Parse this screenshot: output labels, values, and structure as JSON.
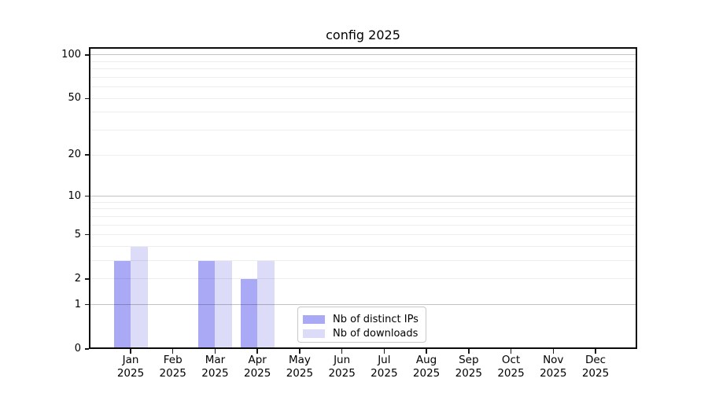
{
  "chart_data": {
    "type": "bar",
    "title": "config 2025",
    "categories": [
      "Jan",
      "Feb",
      "Mar",
      "Apr",
      "May",
      "Jun",
      "Jul",
      "Aug",
      "Sep",
      "Oct",
      "Nov",
      "Dec"
    ],
    "year_label": "2025",
    "series": [
      {
        "name": "Nb of distinct IPs",
        "color": "#a9a9f5",
        "values": [
          3,
          0,
          3,
          2,
          0,
          0,
          0,
          0,
          0,
          0,
          0,
          0
        ]
      },
      {
        "name": "Nb of downloads",
        "color": "#dcdcf9",
        "values": [
          4,
          0,
          3,
          3,
          0,
          0,
          0,
          0,
          0,
          0,
          0,
          0
        ]
      }
    ],
    "yscale": "log10(1+y)",
    "yticks": [
      0,
      1,
      2,
      5,
      10,
      20,
      50,
      100
    ],
    "major_grid_values": [
      1,
      10,
      100
    ],
    "minor_grid_values": [
      2,
      3,
      4,
      5,
      6,
      7,
      8,
      9,
      20,
      30,
      40,
      50,
      60,
      70,
      80,
      90
    ],
    "ylim": [
      0,
      113
    ],
    "xlabel": "",
    "ylabel": "",
    "grid": true,
    "legend_position": "lower center",
    "colors": {
      "spine": "#0a0a0a",
      "major_grid": "#c3c3c3",
      "minor_grid": "#ededed",
      "legend_border": "#c9c9c9",
      "background": "#ffffff"
    }
  }
}
